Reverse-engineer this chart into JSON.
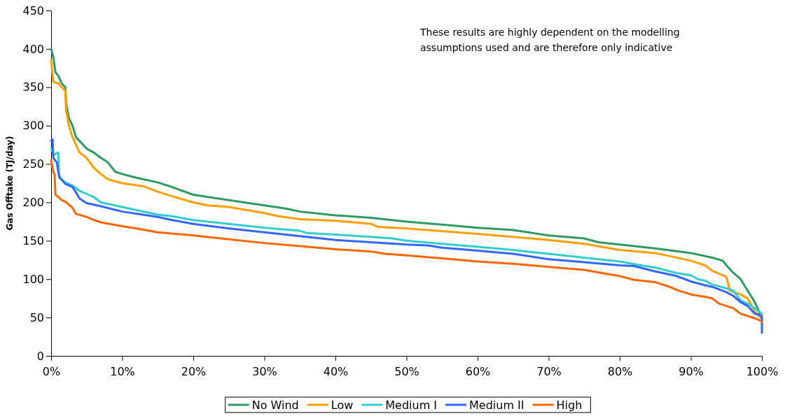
{
  "chart_data": {
    "type": "line",
    "ylabel": "Gas Offtake (TJ/day)",
    "annotations": [
      "These results are highly dependent on the modelling assumptions used and are therefore only indicative"
    ],
    "xlim": [
      0,
      100
    ],
    "xticks": [
      {
        "value": 0,
        "label": "0%"
      },
      {
        "value": 10,
        "label": "10%"
      },
      {
        "value": 20,
        "label": "20%"
      },
      {
        "value": 30,
        "label": "30%"
      },
      {
        "value": 40,
        "label": "40%"
      },
      {
        "value": 50,
        "label": "50%"
      },
      {
        "value": 60,
        "label": "60%"
      },
      {
        "value": 70,
        "label": "70%"
      },
      {
        "value": 80,
        "label": "80%"
      },
      {
        "value": 90,
        "label": "90%"
      },
      {
        "value": 100,
        "label": "100%"
      }
    ],
    "ylim": [
      0,
      450
    ],
    "yticks": [
      0,
      50,
      100,
      150,
      200,
      250,
      300,
      350,
      400,
      450
    ],
    "grid": false,
    "legend": "bottom",
    "marker": "none",
    "line_style": "solid",
    "series": [
      {
        "name": "No Wind",
        "color": "#2e9a62",
        "x": [
          0,
          0.3,
          0.6,
          1,
          1.5,
          2,
          2.1,
          2.5,
          3,
          3.5,
          4,
          5,
          6,
          7,
          8,
          9,
          10,
          12,
          15,
          17,
          20,
          25,
          30,
          33,
          35,
          40,
          45,
          50,
          55,
          60,
          65,
          70,
          75,
          77,
          80,
          85,
          90,
          93,
          94.5,
          95,
          96,
          97,
          98,
          99,
          99.5,
          100
        ],
        "values": [
          400,
          390,
          370,
          365,
          355,
          350,
          330,
          310,
          300,
          285,
          280,
          270,
          265,
          258,
          252,
          240,
          237,
          232,
          226,
          220,
          210,
          203,
          196,
          192,
          188,
          183,
          180,
          175,
          171,
          167,
          164,
          157,
          153,
          148,
          145,
          140,
          134,
          128,
          124,
          118,
          108,
          100,
          85,
          70,
          60,
          47
        ]
      },
      {
        "name": "Low",
        "color": "#ff9e00",
        "x": [
          0,
          0.3,
          1,
          1.5,
          2,
          2.1,
          2.5,
          3,
          3.5,
          4,
          5,
          6,
          7,
          8,
          10,
          13,
          15,
          17,
          20,
          22,
          25,
          30,
          32,
          35,
          40,
          45,
          46,
          50,
          60,
          70,
          75,
          80,
          85,
          90,
          92,
          93,
          94,
          95,
          95.5,
          97,
          98,
          99,
          100
        ],
        "values": [
          385,
          357,
          355,
          350,
          345,
          320,
          300,
          285,
          275,
          265,
          258,
          245,
          237,
          230,
          225,
          221,
          214,
          208,
          200,
          196,
          194,
          186,
          182,
          178,
          176,
          172,
          168,
          166,
          159,
          151,
          146,
          138,
          134,
          124,
          118,
          111,
          107,
          103,
          85,
          80,
          75,
          58,
          48
        ]
      },
      {
        "name": "Medium I",
        "color": "#33cccc",
        "x": [
          0,
          0.4,
          1,
          1.1,
          2,
          3,
          4,
          6,
          7,
          10,
          12,
          15,
          17,
          20,
          25,
          30,
          35,
          36,
          40,
          45,
          48,
          50,
          55,
          60,
          65,
          70,
          75,
          80,
          83,
          85,
          88,
          90,
          91,
          92,
          93,
          95,
          96,
          97,
          98,
          99,
          100
        ],
        "values": [
          270,
          262,
          265,
          232,
          226,
          222,
          215,
          207,
          200,
          194,
          190,
          184,
          182,
          177,
          172,
          167,
          163,
          160,
          158,
          155,
          153,
          150,
          146,
          142,
          138,
          133,
          128,
          123,
          118,
          115,
          108,
          105,
          100,
          98,
          93,
          88,
          85,
          72,
          68,
          62,
          55
        ]
      },
      {
        "name": "Medium II",
        "color": "#3366ff",
        "x": [
          0,
          0.2,
          0.3,
          0.8,
          1,
          1.2,
          2,
          3,
          3.5,
          4,
          5,
          7,
          10,
          15,
          17,
          20,
          25,
          30,
          35,
          40,
          45,
          50,
          53,
          55,
          60,
          65,
          70,
          75,
          80,
          82,
          85,
          88,
          90,
          92,
          93,
          95,
          96,
          97,
          98,
          98.5,
          99,
          100,
          100
        ],
        "values": [
          280,
          282,
          258,
          252,
          240,
          233,
          224,
          220,
          213,
          205,
          199,
          195,
          188,
          181,
          177,
          172,
          166,
          161,
          156,
          151,
          148,
          145,
          144,
          141,
          137,
          133,
          126,
          122,
          118,
          117,
          110,
          104,
          97,
          92,
          90,
          83,
          78,
          70,
          65,
          60,
          55,
          52,
          30
        ]
      },
      {
        "name": "High",
        "color": "#ff6600",
        "x": [
          0,
          0.3,
          0.5,
          0.6,
          1.5,
          2,
          3,
          3.5,
          5,
          6,
          7,
          10,
          12,
          15,
          20,
          25,
          30,
          35,
          40,
          45,
          47,
          50,
          55,
          60,
          65,
          70,
          75,
          78,
          80,
          82,
          85,
          87,
          88,
          90,
          92,
          93,
          94,
          95,
          96,
          97,
          98,
          99,
          100
        ],
        "values": [
          255,
          240,
          236,
          210,
          203,
          201,
          193,
          185,
          181,
          177,
          174,
          169,
          166,
          161,
          157,
          152,
          147,
          143,
          139,
          136,
          133,
          131,
          127,
          123,
          120,
          116,
          112,
          107,
          104,
          99,
          96,
          90,
          86,
          80,
          77,
          75,
          68,
          65,
          62,
          55,
          52,
          49,
          45
        ]
      }
    ]
  }
}
